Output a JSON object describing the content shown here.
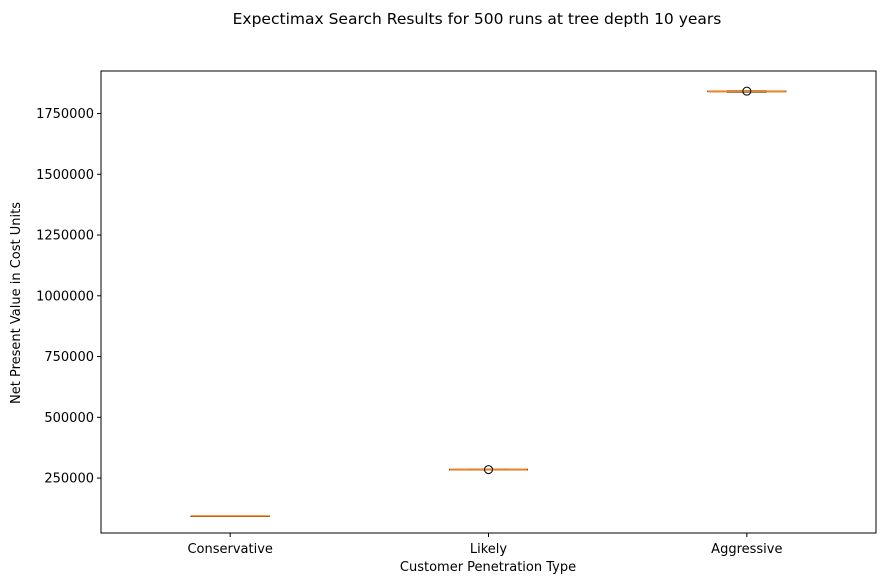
{
  "chart_data": {
    "type": "box",
    "title": "Expectimax Search Results for 500 runs at tree depth 10 years",
    "xlabel": "Customer Penetration Type",
    "ylabel": "Net Present Value in Cost Units",
    "categories": [
      "Conservative",
      "Likely",
      "Aggressive"
    ],
    "boxes": [
      {
        "category": "Conservative",
        "min": 94000,
        "q1": 94000,
        "median": 94000,
        "q3": 94000,
        "max": 94000,
        "outliers": []
      },
      {
        "category": "Likely",
        "min": 284000,
        "q1": 284000,
        "median": 285000,
        "q3": 286000,
        "max": 286000,
        "outliers": [
          285000
        ]
      },
      {
        "category": "Aggressive",
        "min": 1838000,
        "q1": 1840000,
        "median": 1841000,
        "q3": 1842000,
        "max": 1843000,
        "outliers": [
          1842000
        ]
      }
    ],
    "yticks": [
      250000,
      500000,
      750000,
      1000000,
      1250000,
      1500000,
      1750000
    ],
    "ylim": [
      24000,
      1925000
    ],
    "grid": false,
    "colors": {
      "median": "#ff7f0e",
      "box": "#000000",
      "outlier": "#000000"
    }
  }
}
